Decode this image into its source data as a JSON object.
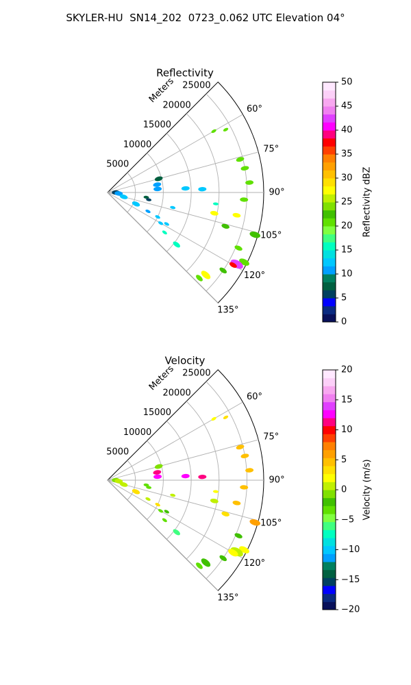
{
  "figure_title": "SKYLER-HU  SN14_202  0723_0.062 UTC Elevation 04°",
  "chart_data": [
    {
      "type": "polar-sector",
      "title": "Reflectivity",
      "radial_label": "Meters",
      "radial_ticks": [
        "5000",
        "10000",
        "15000",
        "20000",
        "25000"
      ],
      "radial_tick_values": [
        5000,
        10000,
        15000,
        20000,
        25000
      ],
      "r_max": 28000,
      "azimuth_ticks": [
        "60°",
        "75°",
        "90°",
        "105°",
        "120°",
        "135°"
      ],
      "azimuth_tick_values": [
        60,
        75,
        90,
        105,
        120,
        135
      ],
      "azimuth_range": [
        45,
        135
      ],
      "grid": true,
      "colorbar": {
        "label": "Reflectivity dBZ",
        "range": [
          0,
          50
        ],
        "ticks": [
          "0",
          "5",
          "10",
          "15",
          "20",
          "25",
          "30",
          "35",
          "40",
          "45",
          "50"
        ],
        "tick_values": [
          0,
          5,
          10,
          15,
          20,
          25,
          30,
          35,
          40,
          45,
          50
        ],
        "colors": [
          "#08105a",
          "#0a2a80",
          "#0000ff",
          "#004060",
          "#006040",
          "#008060",
          "#00a0ff",
          "#00c8ff",
          "#00e0e0",
          "#00ffc0",
          "#40ff80",
          "#80ff40",
          "#60e000",
          "#40c000",
          "#80e000",
          "#c0f000",
          "#ffff00",
          "#ffe000",
          "#ffc000",
          "#ffa000",
          "#ff8000",
          "#ff4000",
          "#ff0000",
          "#ff0080",
          "#ff00ff",
          "#e040ff",
          "#f080f0",
          "#f8a8f0",
          "#fcd0f8",
          "#ffe8ff"
        ]
      },
      "echoes": [
        {
          "az": 60,
          "r": 22000,
          "v": 20,
          "s": 1
        },
        {
          "az": 62,
          "r": 24000,
          "v": 20,
          "s": 1
        },
        {
          "az": 76,
          "r": 24500,
          "v": 20,
          "s": 2
        },
        {
          "az": 80,
          "r": 25000,
          "v": 20,
          "s": 2
        },
        {
          "az": 86,
          "r": 25500,
          "v": 20,
          "s": 2
        },
        {
          "az": 93,
          "r": 24500,
          "v": 20,
          "s": 2
        },
        {
          "az": 96,
          "r": 19500,
          "v": 15,
          "s": 1
        },
        {
          "az": 100,
          "r": 23500,
          "v": 27,
          "s": 2
        },
        {
          "az": 101,
          "r": 19500,
          "v": 27,
          "s": 2
        },
        {
          "az": 106,
          "r": 22000,
          "v": 22,
          "s": 2
        },
        {
          "az": 106,
          "r": 27500,
          "v": 22,
          "s": 3
        },
        {
          "az": 113,
          "r": 25500,
          "v": 20,
          "s": 2
        },
        {
          "az": 117,
          "r": 27500,
          "v": 20,
          "s": 3
        },
        {
          "az": 119,
          "r": 26500,
          "v": 42,
          "s": 4
        },
        {
          "az": 120,
          "r": 26000,
          "v": 37,
          "s": 2
        },
        {
          "az": 124,
          "r": 25000,
          "v": 22,
          "s": 2
        },
        {
          "az": 130,
          "r": 23000,
          "v": 28,
          "s": 3
        },
        {
          "az": 133,
          "r": 22500,
          "v": 20,
          "s": 2
        },
        {
          "az": 75,
          "r": 9500,
          "v": 8,
          "s": 2
        },
        {
          "az": 81,
          "r": 9000,
          "v": 10,
          "s": 2
        },
        {
          "az": 86,
          "r": 9000,
          "v": 10,
          "s": 2
        },
        {
          "az": 87,
          "r": 14000,
          "v": 13,
          "s": 2
        },
        {
          "az": 88,
          "r": 17000,
          "v": 13,
          "s": 2
        },
        {
          "az": 90,
          "r": 1500,
          "v": 6,
          "s": 2
        },
        {
          "az": 95,
          "r": 2000,
          "v": 10,
          "s": 2
        },
        {
          "az": 97,
          "r": 7000,
          "v": 8,
          "s": 1
        },
        {
          "az": 100,
          "r": 7500,
          "v": 6,
          "s": 1
        },
        {
          "az": 103,
          "r": 12000,
          "v": 12,
          "s": 1
        },
        {
          "az": 105,
          "r": 3000,
          "v": 12,
          "s": 2
        },
        {
          "az": 112,
          "r": 5500,
          "v": 12,
          "s": 2
        },
        {
          "az": 115,
          "r": 8000,
          "v": 10,
          "s": 1
        },
        {
          "az": 116,
          "r": 10000,
          "v": 12,
          "s": 1
        },
        {
          "az": 118,
          "r": 12000,
          "v": 12,
          "s": 1
        },
        {
          "az": 120,
          "r": 11000,
          "v": 12,
          "s": 1
        },
        {
          "az": 125,
          "r": 12500,
          "v": 15,
          "s": 1
        },
        {
          "az": 127,
          "r": 15500,
          "v": 15,
          "s": 2
        }
      ]
    },
    {
      "type": "polar-sector",
      "title": "Velocity",
      "radial_label": "Meters",
      "radial_ticks": [
        "5000",
        "10000",
        "15000",
        "20000",
        "25000"
      ],
      "radial_tick_values": [
        5000,
        10000,
        15000,
        20000,
        25000
      ],
      "r_max": 28000,
      "azimuth_ticks": [
        "60°",
        "75°",
        "90°",
        "105°",
        "120°",
        "135°"
      ],
      "azimuth_tick_values": [
        60,
        75,
        90,
        105,
        120,
        135
      ],
      "azimuth_range": [
        45,
        135
      ],
      "grid": true,
      "colorbar": {
        "label": "Velocity (m/s)",
        "range": [
          -20,
          20
        ],
        "ticks": [
          "−20",
          "−15",
          "−10",
          "−5",
          "0",
          "5",
          "10",
          "15",
          "20"
        ],
        "tick_values": [
          -20,
          -15,
          -10,
          -5,
          0,
          5,
          10,
          15,
          20
        ],
        "colors": [
          "#08105a",
          "#0a2a80",
          "#0000ff",
          "#004060",
          "#006040",
          "#008060",
          "#00a0ff",
          "#00c8ff",
          "#00e0e0",
          "#00ffc0",
          "#40ff80",
          "#80ff40",
          "#60e000",
          "#40c000",
          "#80e000",
          "#c0f000",
          "#ffff00",
          "#ffe000",
          "#ffc000",
          "#ffa000",
          "#ff8000",
          "#ff4000",
          "#ff0000",
          "#ff0080",
          "#ff00ff",
          "#e040ff",
          "#f080f0",
          "#f8a8f0",
          "#fcd0f8",
          "#ffe8ff"
        ]
      },
      "echoes": [
        {
          "az": 60,
          "r": 22000,
          "v": 2,
          "s": 1
        },
        {
          "az": 62,
          "r": 24000,
          "v": 3,
          "s": 1
        },
        {
          "az": 76,
          "r": 24500,
          "v": 5,
          "s": 2
        },
        {
          "az": 80,
          "r": 25000,
          "v": 4,
          "s": 2
        },
        {
          "az": 86,
          "r": 25500,
          "v": 5,
          "s": 2
        },
        {
          "az": 93,
          "r": 24500,
          "v": 4,
          "s": 2
        },
        {
          "az": 96,
          "r": 19500,
          "v": 2,
          "s": 1
        },
        {
          "az": 100,
          "r": 23500,
          "v": 4,
          "s": 2
        },
        {
          "az": 101,
          "r": 19500,
          "v": 1,
          "s": 2
        },
        {
          "az": 106,
          "r": 22000,
          "v": 3,
          "s": 2
        },
        {
          "az": 106,
          "r": 27500,
          "v": 6,
          "s": 3
        },
        {
          "az": 113,
          "r": 25500,
          "v": -2,
          "s": 2
        },
        {
          "az": 117,
          "r": 27500,
          "v": 2,
          "s": 3
        },
        {
          "az": 119,
          "r": 26500,
          "v": 1,
          "s": 4
        },
        {
          "az": 120,
          "r": 26000,
          "v": 2,
          "s": 3
        },
        {
          "az": 124,
          "r": 25000,
          "v": -2,
          "s": 2
        },
        {
          "az": 130,
          "r": 23000,
          "v": -2,
          "s": 3
        },
        {
          "az": 133,
          "r": 22500,
          "v": -3,
          "s": 2
        },
        {
          "az": 75,
          "r": 9500,
          "v": -1,
          "s": 2
        },
        {
          "az": 81,
          "r": 9000,
          "v": 11,
          "s": 2
        },
        {
          "az": 86,
          "r": 9000,
          "v": 13,
          "s": 2
        },
        {
          "az": 87,
          "r": 14000,
          "v": 13,
          "s": 2
        },
        {
          "az": 88,
          "r": 17000,
          "v": 11,
          "s": 2
        },
        {
          "az": 90,
          "r": 1500,
          "v": -1,
          "s": 2
        },
        {
          "az": 95,
          "r": 2000,
          "v": 0,
          "s": 2
        },
        {
          "az": 97,
          "r": 7000,
          "v": -4,
          "s": 1
        },
        {
          "az": 100,
          "r": 7500,
          "v": -3,
          "s": 1
        },
        {
          "az": 103,
          "r": 12000,
          "v": 0,
          "s": 1
        },
        {
          "az": 105,
          "r": 3000,
          "v": 1,
          "s": 2
        },
        {
          "az": 112,
          "r": 5500,
          "v": 3,
          "s": 2
        },
        {
          "az": 115,
          "r": 8000,
          "v": 1,
          "s": 1
        },
        {
          "az": 116,
          "r": 10000,
          "v": 3,
          "s": 1
        },
        {
          "az": 118,
          "r": 12000,
          "v": -2,
          "s": 1
        },
        {
          "az": 120,
          "r": 11000,
          "v": -3,
          "s": 1
        },
        {
          "az": 125,
          "r": 12500,
          "v": -4,
          "s": 1
        },
        {
          "az": 127,
          "r": 15500,
          "v": -6,
          "s": 2
        }
      ]
    }
  ]
}
